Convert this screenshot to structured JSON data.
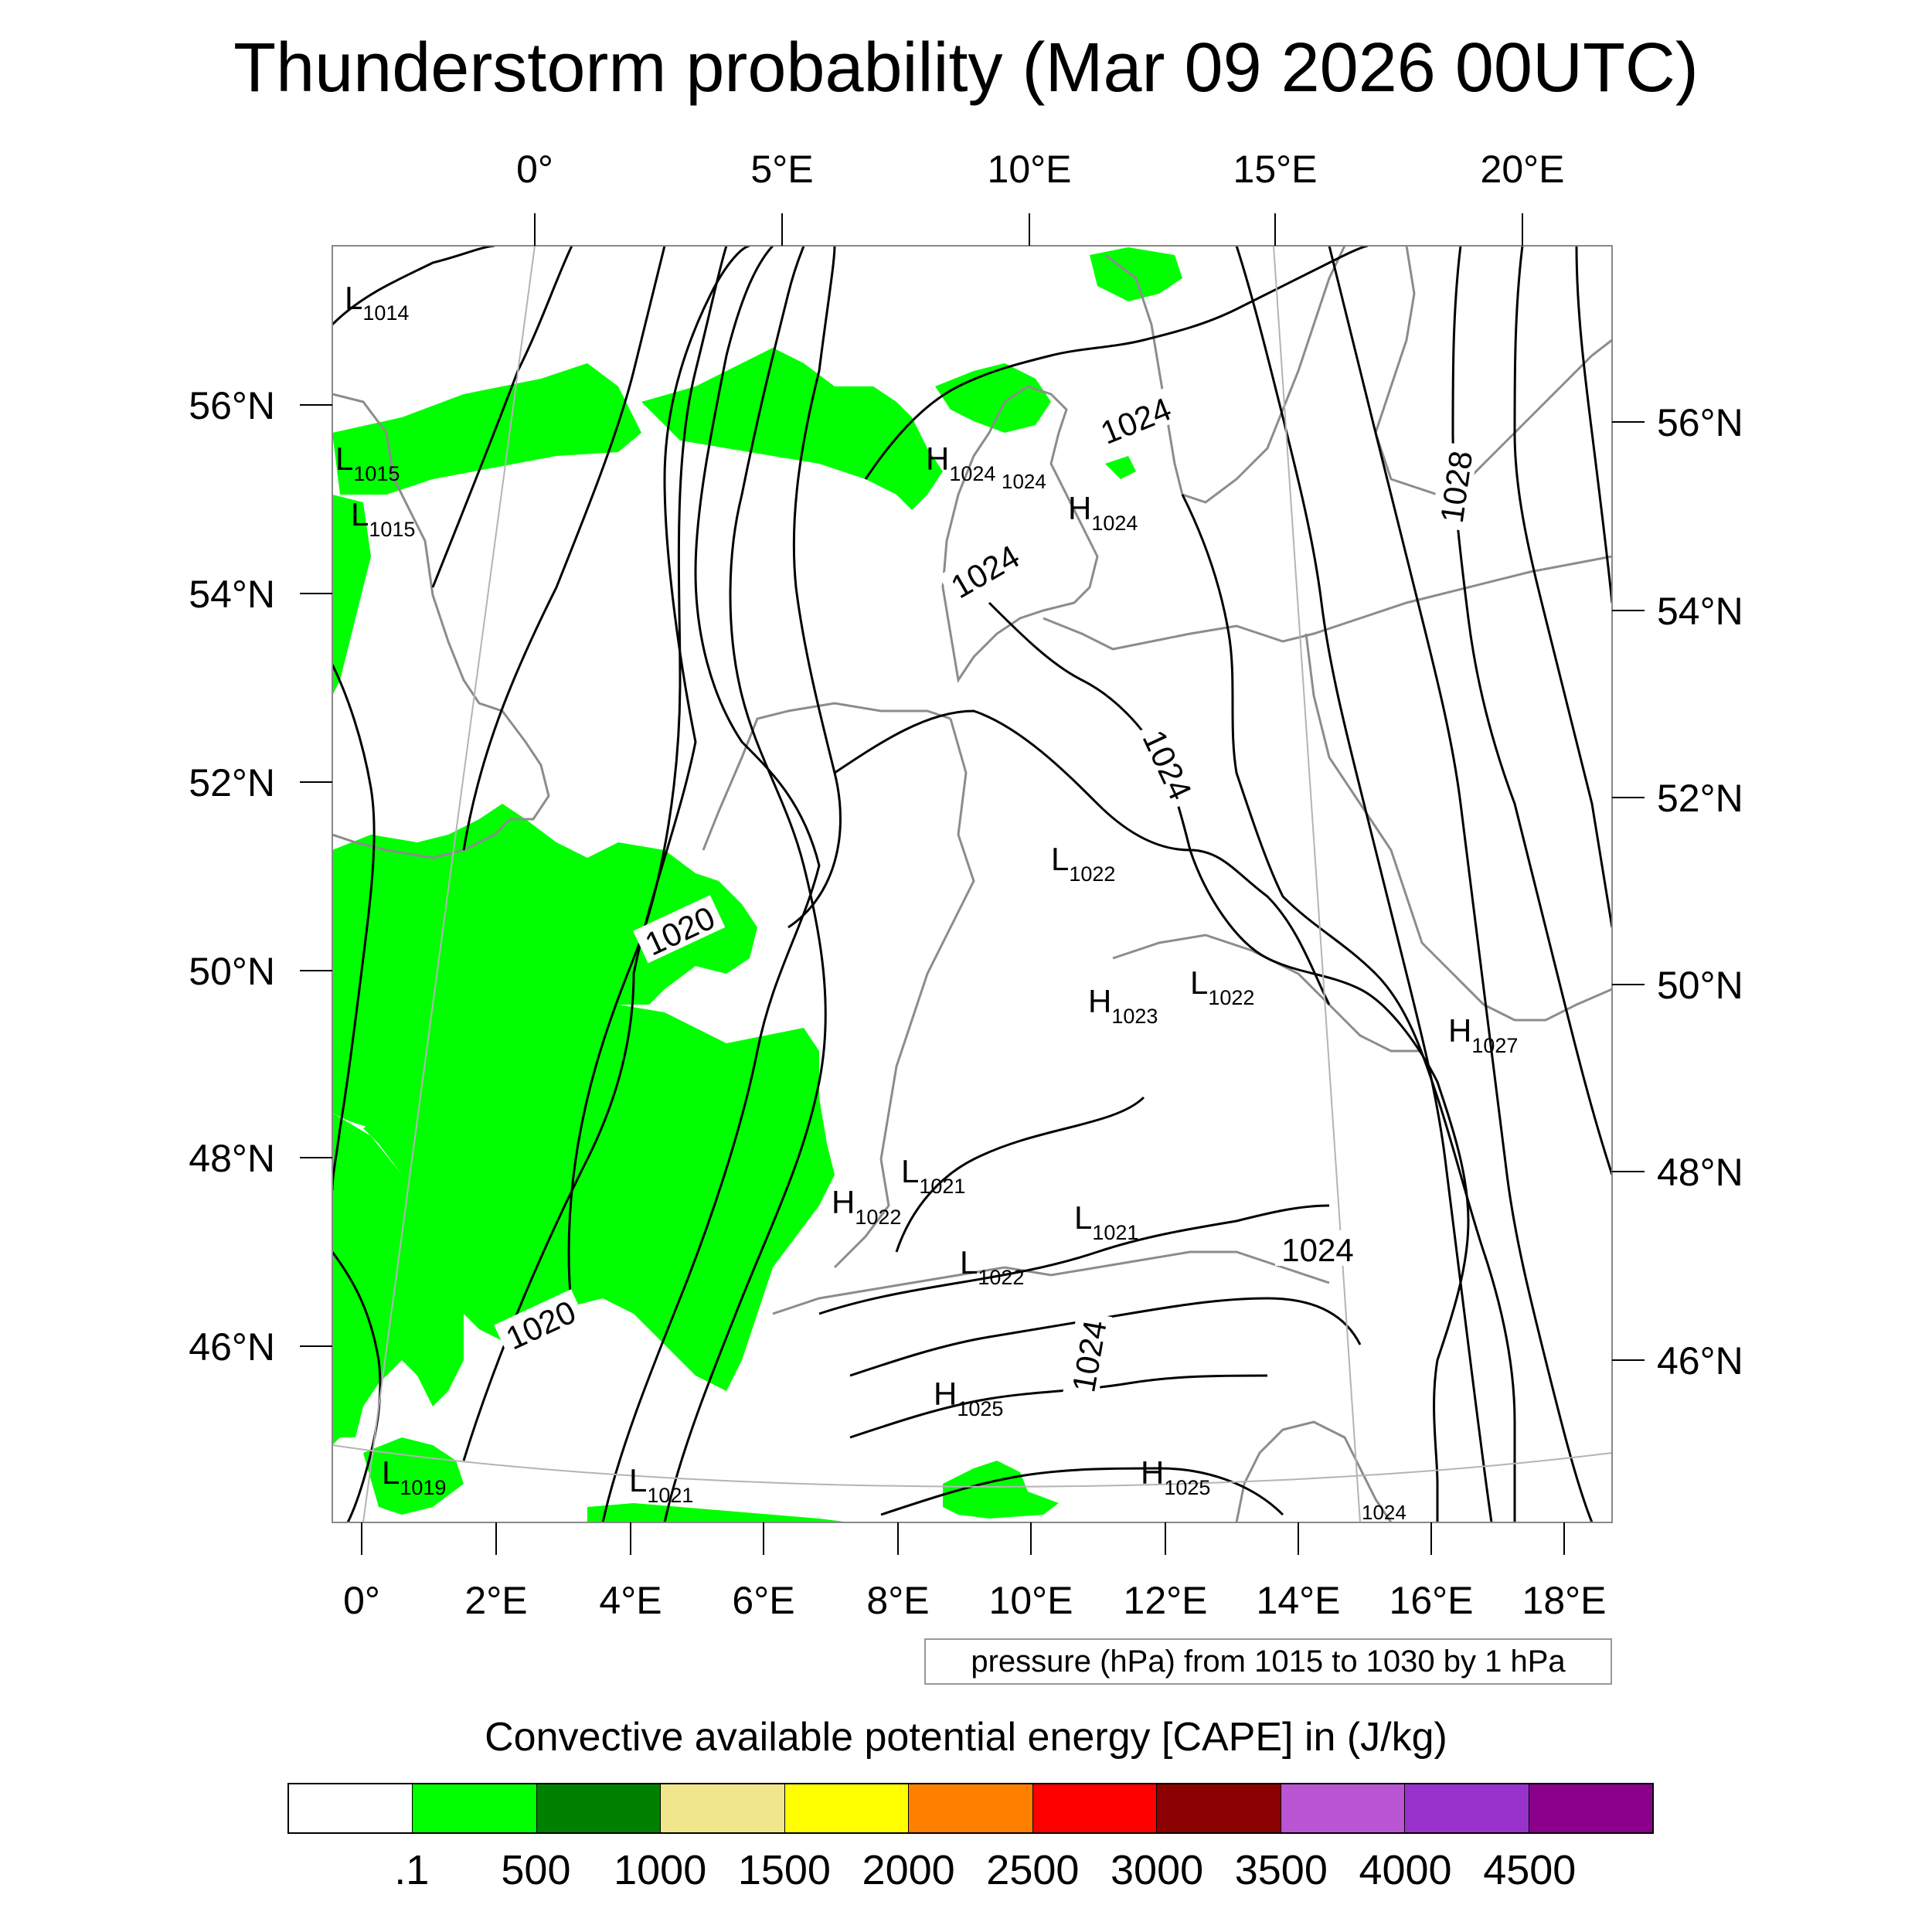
{
  "title": "Thunderstorm probability (Mar 09 2026 00UTC)",
  "map": {
    "top_axis_labels": [
      "0°",
      "5°E",
      "10°E",
      "15°E",
      "20°E"
    ],
    "bottom_axis_labels": [
      "0°",
      "2°E",
      "4°E",
      "6°E",
      "8°E",
      "10°E",
      "12°E",
      "14°E",
      "16°E",
      "18°E"
    ],
    "left_axis_labels": [
      "56°N",
      "54°N",
      "52°N",
      "50°N",
      "48°N",
      "46°N"
    ],
    "right_axis_labels": [
      "56°N",
      "54°N",
      "52°N",
      "50°N",
      "48°N",
      "46°N"
    ],
    "contour_labels": [
      "1024",
      "1024",
      "1024",
      "1028",
      "1020",
      "1020",
      "1024",
      "1024"
    ],
    "pressure_centers": [
      {
        "type": "L",
        "value": "1014"
      },
      {
        "type": "L",
        "value": "1015"
      },
      {
        "type": "L",
        "value": "1015"
      },
      {
        "type": "H",
        "value": "1024"
      },
      {
        "type": "H",
        "value": "1024"
      },
      {
        "type": "L",
        "value": "1022"
      },
      {
        "type": "L",
        "value": "1022"
      },
      {
        "type": "H",
        "value": "1023"
      },
      {
        "type": "H",
        "value": "1027"
      },
      {
        "type": "L",
        "value": "1021"
      },
      {
        "type": "H",
        "value": "1022"
      },
      {
        "type": "L",
        "value": "1021"
      },
      {
        "type": "L",
        "value": "1022"
      },
      {
        "type": "H",
        "value": "1025"
      },
      {
        "type": "L",
        "value": "1019"
      },
      {
        "type": "L",
        "value": "1021"
      },
      {
        "type": "H",
        "value": "1025"
      }
    ],
    "small_values": [
      "1024",
      "1024"
    ],
    "colors": {
      "cape_fill": "#00ff00",
      "contour": "#000000",
      "coastline": "#8c8c8c",
      "grid": "#b4b4b4"
    }
  },
  "legend": {
    "pressure_note": "pressure (hPa) from 1015 to 1030 by 1 hPa",
    "cape_title": "Convective available potential energy [CAPE] in (J/kg)",
    "colorbar": {
      "colors": [
        "#ffffff",
        "#00ff00",
        "#008000",
        "#f0e68c",
        "#ffff00",
        "#ff8000",
        "#ff0000",
        "#8b0000",
        "#ba55d3",
        "#9932cc",
        "#8b008b"
      ],
      "labels": [
        ".1",
        "500",
        "1000",
        "1500",
        "2000",
        "2500",
        "3000",
        "3500",
        "4000",
        "4500"
      ]
    }
  }
}
